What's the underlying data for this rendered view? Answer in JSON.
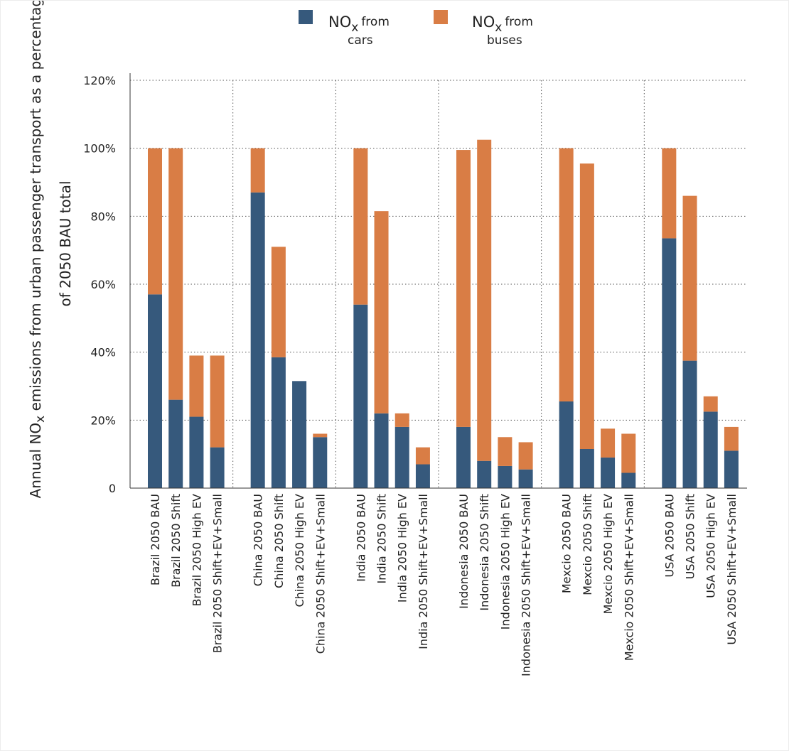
{
  "chart_data": {
    "type": "bar",
    "stacked": true,
    "groups": [
      {
        "name": "Brazil",
        "categories": [
          "Brazil 2050 BAU",
          "Brazil 2050 Shift",
          "Brazil 2050 High EV",
          "Brazil 2050 Shift+EV+Small"
        ]
      },
      {
        "name": "China",
        "categories": [
          "China 2050 BAU",
          "China 2050 Shift",
          "China 2050 High EV",
          "China 2050 Shift+EV+Small"
        ]
      },
      {
        "name": "India",
        "categories": [
          "India 2050 BAU",
          "India 2050 Shift",
          "India 2050 High EV",
          "India 2050 Shift+EV+Small"
        ]
      },
      {
        "name": "Indonesia",
        "categories": [
          "Indonesia 2050 BAU",
          "Indonesia 2050 Shift",
          "Indonesia 2050 High EV",
          "Indonesia 2050 Shift+EV+Small"
        ]
      },
      {
        "name": "Mexcio",
        "categories": [
          "Mexcio 2050 BAU",
          "Mexcio 2050 Shift",
          "Mexcio 2050 High EV",
          "Mexcio 2050 Shift+EV+Small"
        ]
      },
      {
        "name": "USA",
        "categories": [
          "USA 2050 BAU",
          "USA 2050 Shift",
          "USA 2050 High EV",
          "USA 2050 Shift+EV+Small"
        ]
      }
    ],
    "series": [
      {
        "name": "NOx from cars",
        "legend_main": "NO",
        "legend_sub": "x",
        "legend_from": "from",
        "legend_line2": "cars",
        "color": "#36597c",
        "values": [
          57,
          26,
          21,
          12,
          87,
          38.5,
          31.5,
          15,
          54,
          22,
          18,
          7,
          18,
          8,
          6.5,
          5.5,
          25.5,
          11.5,
          9,
          4.5,
          73.5,
          37.5,
          22.5,
          11
        ]
      },
      {
        "name": "NOx from buses",
        "legend_main": "NO",
        "legend_sub": "x",
        "legend_from": "from",
        "legend_line2": "buses",
        "color": "#d97d45",
        "values": [
          43,
          74,
          18,
          27,
          13,
          32.5,
          0,
          1,
          46,
          59.5,
          4,
          5,
          81.5,
          94.5,
          8.5,
          8,
          74.5,
          84,
          8.5,
          11.5,
          26.5,
          48.5,
          4.5,
          7
        ]
      }
    ],
    "ylabel": {
      "line1_prefix": "Annual NO",
      "line1_sub": "x",
      "line1_suffix": " emissions from urban passenger transport as a percentage",
      "line2": "of 2050 BAU total"
    },
    "y_ticks": [
      {
        "value": 0,
        "label": "0"
      },
      {
        "value": 20,
        "label": "20%"
      },
      {
        "value": 40,
        "label": "40%"
      },
      {
        "value": 60,
        "label": "60%"
      },
      {
        "value": 80,
        "label": "80%"
      },
      {
        "value": 100,
        "label": "100%"
      },
      {
        "value": 120,
        "label": "120%"
      }
    ],
    "ylim": [
      0,
      120
    ],
    "grid": "dotted horizontal gridlines and dotted group separators",
    "legend_position": "top"
  }
}
